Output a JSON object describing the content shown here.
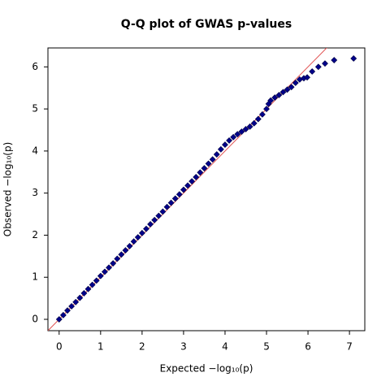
{
  "chart_data": {
    "type": "scatter",
    "title": "Q-Q plot of GWAS p-values",
    "x_label": "Expected  −log₁₀(p)",
    "y_label": "Observed  −log₁₀(p)",
    "xlim": [
      -0.27,
      7.37
    ],
    "ylim": [
      -0.27,
      6.45
    ],
    "xticks": [
      0,
      1,
      2,
      3,
      4,
      5,
      6,
      7
    ],
    "yticks": [
      0,
      1,
      2,
      3,
      4,
      5,
      6
    ],
    "reference_line": {
      "slope": 1,
      "intercept": 0,
      "color": "#e05050"
    },
    "series": [
      {
        "color": "#00008b",
        "x": [
          0,
          0.1,
          0.2,
          0.3,
          0.4,
          0.5,
          0.6,
          0.7,
          0.8,
          0.9,
          1.0,
          1.1,
          1.2,
          1.3,
          1.4,
          1.5,
          1.6,
          1.7,
          1.8,
          1.9,
          2.0,
          2.1,
          2.2,
          2.3,
          2.4,
          2.5,
          2.6,
          2.7,
          2.8,
          2.9,
          3.0,
          3.1,
          3.2,
          3.3,
          3.4,
          3.5,
          3.6,
          3.7,
          3.8,
          3.9,
          4.0,
          4.1,
          4.2,
          4.3,
          4.4,
          4.5,
          4.6,
          4.7,
          4.8,
          4.9,
          5.0,
          5.05,
          5.1,
          5.2,
          5.3,
          5.4,
          5.5,
          5.6,
          5.7,
          5.8,
          5.9,
          5.98,
          6.1,
          6.25,
          6.41,
          6.63,
          7.1
        ],
        "values": [
          0,
          0.1,
          0.21,
          0.31,
          0.41,
          0.51,
          0.62,
          0.72,
          0.82,
          0.92,
          1.03,
          1.13,
          1.23,
          1.33,
          1.44,
          1.54,
          1.64,
          1.74,
          1.85,
          1.95,
          2.05,
          2.15,
          2.26,
          2.36,
          2.46,
          2.56,
          2.67,
          2.77,
          2.87,
          2.97,
          3.08,
          3.18,
          3.28,
          3.38,
          3.49,
          3.59,
          3.7,
          3.8,
          3.92,
          4.04,
          4.15,
          4.25,
          4.33,
          4.4,
          4.46,
          4.52,
          4.58,
          4.66,
          4.76,
          4.87,
          5.0,
          5.12,
          5.2,
          5.27,
          5.33,
          5.4,
          5.46,
          5.52,
          5.62,
          5.7,
          5.73,
          5.75,
          5.89,
          6.0,
          6.08,
          6.16,
          6.2
        ]
      }
    ]
  }
}
